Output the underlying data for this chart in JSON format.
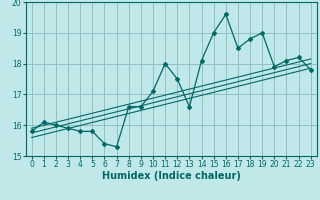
{
  "xlabel": "Humidex (Indice chaleur)",
  "bg_color": "#c0e8e8",
  "grid_color": "#90c0c0",
  "line_color": "#006868",
  "x_values": [
    0,
    1,
    2,
    3,
    4,
    5,
    6,
    7,
    8,
    9,
    10,
    11,
    12,
    13,
    14,
    15,
    16,
    17,
    18,
    19,
    20,
    21,
    22,
    23
  ],
  "y_values": [
    15.8,
    16.1,
    16.0,
    15.9,
    15.8,
    15.8,
    15.4,
    15.3,
    16.6,
    16.6,
    17.1,
    18.0,
    17.5,
    16.6,
    18.1,
    19.0,
    19.6,
    18.5,
    18.8,
    19.0,
    17.9,
    18.1,
    18.2,
    17.8
  ],
  "reg_line_x": [
    0,
    23
  ],
  "reg_line1_y": [
    15.75,
    18.0
  ],
  "reg_line2_y": [
    15.6,
    17.85
  ],
  "reg_line3_y": [
    15.9,
    18.15
  ],
  "xlim": [
    -0.5,
    23.5
  ],
  "ylim": [
    15.0,
    20.0
  ],
  "yticks": [
    15,
    16,
    17,
    18,
    19,
    20
  ],
  "xticks": [
    0,
    1,
    2,
    3,
    4,
    5,
    6,
    7,
    8,
    9,
    10,
    11,
    12,
    13,
    14,
    15,
    16,
    17,
    18,
    19,
    20,
    21,
    22,
    23
  ],
  "tick_fontsize": 5.5,
  "xlabel_fontsize": 7.0,
  "marker": "D",
  "marker_size": 2.0,
  "linewidth": 0.9,
  "reg_linewidth": 0.8
}
